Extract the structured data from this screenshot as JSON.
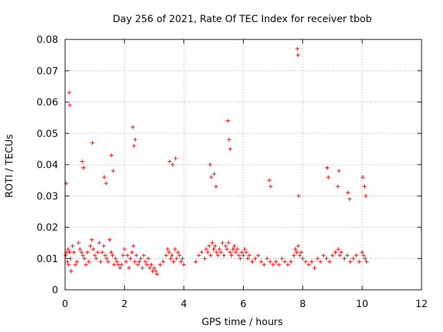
{
  "chart_data": {
    "type": "scatter",
    "title": "Day 256 of 2021, Rate Of TEC Index for receiver tbob",
    "xlabel": "GPS time / hours",
    "ylabel": "ROTI / TECUs",
    "xlim": [
      0,
      12
    ],
    "ylim": [
      0,
      0.08
    ],
    "xticks": [
      0,
      2,
      4,
      6,
      8,
      10,
      12
    ],
    "xtick_labels": [
      "0",
      "2",
      "4",
      "6",
      "8",
      "10",
      "12"
    ],
    "yticks": [
      0,
      0.01,
      0.02,
      0.03,
      0.04,
      0.05,
      0.06,
      0.07,
      0.08
    ],
    "ytick_labels": [
      "0",
      "0.01",
      "0.02",
      "0.03",
      "0.04",
      "0.05",
      "0.06",
      "0.07",
      "0.08"
    ],
    "grid": true,
    "marker": "+",
    "color": "#ff0000",
    "series": [
      {
        "name": "ROTI",
        "x": [
          0.02,
          0.05,
          0.08,
          0.1,
          0.12,
          0.15,
          0.18,
          0.2,
          0.25,
          0.3,
          0.35,
          0.4,
          0.45,
          0.5,
          0.55,
          0.6,
          0.65,
          0.7,
          0.75,
          0.8,
          0.85,
          0.9,
          0.95,
          1.0,
          1.05,
          1.1,
          1.15,
          1.2,
          1.25,
          1.3,
          1.35,
          1.4,
          1.45,
          1.5,
          1.55,
          1.6,
          1.65,
          1.7,
          1.75,
          1.8,
          1.85,
          1.9,
          1.95,
          2.0,
          2.05,
          2.1,
          2.15,
          2.2,
          2.25,
          2.3,
          2.35,
          2.4,
          2.45,
          2.5,
          2.55,
          2.6,
          2.65,
          2.7,
          2.75,
          2.8,
          2.85,
          2.9,
          2.95,
          3.0,
          3.05,
          3.1,
          3.2,
          3.3,
          3.4,
          3.45,
          3.5,
          3.55,
          3.6,
          3.65,
          3.7,
          3.75,
          3.8,
          3.85,
          3.9,
          3.95,
          4.0,
          4.4,
          4.5,
          4.6,
          4.7,
          4.75,
          4.8,
          4.85,
          4.9,
          4.95,
          5.0,
          5.05,
          5.1,
          5.15,
          5.2,
          5.25,
          5.3,
          5.35,
          5.4,
          5.45,
          5.5,
          5.55,
          5.6,
          5.65,
          5.7,
          5.75,
          5.8,
          5.85,
          5.9,
          5.95,
          6.0,
          6.05,
          6.1,
          6.15,
          6.2,
          6.3,
          6.4,
          6.5,
          6.6,
          6.7,
          6.8,
          6.9,
          7.0,
          7.1,
          7.2,
          7.3,
          7.4,
          7.5,
          7.6,
          7.7,
          7.75,
          7.8,
          7.85,
          7.9,
          7.95,
          8.0,
          8.1,
          8.2,
          8.3,
          8.4,
          8.5,
          8.6,
          8.7,
          8.8,
          8.9,
          9.0,
          9.1,
          9.2,
          9.25,
          9.3,
          9.4,
          9.5,
          9.6,
          9.7,
          9.8,
          9.9,
          10.0,
          10.05,
          10.1,
          10.15,
          0.04,
          0.14,
          0.16,
          0.58,
          0.62,
          0.92,
          1.32,
          1.38,
          1.56,
          1.62,
          2.28,
          2.32,
          2.36,
          3.52,
          3.62,
          3.72,
          4.88,
          4.92,
          5.48,
          5.52,
          5.56,
          5.02,
          5.08,
          6.88,
          6.92,
          7.82,
          7.84,
          7.86,
          8.82,
          8.86,
          9.18,
          9.22,
          9.52,
          9.58,
          10.02,
          10.08,
          10.12
        ],
        "y": [
          0.011,
          0.012,
          0.009,
          0.013,
          0.008,
          0.012,
          0.01,
          0.006,
          0.014,
          0.012,
          0.008,
          0.009,
          0.015,
          0.013,
          0.012,
          0.011,
          0.01,
          0.008,
          0.012,
          0.009,
          0.014,
          0.016,
          0.013,
          0.011,
          0.01,
          0.012,
          0.015,
          0.009,
          0.012,
          0.014,
          0.011,
          0.01,
          0.009,
          0.016,
          0.012,
          0.011,
          0.008,
          0.01,
          0.009,
          0.008,
          0.007,
          0.008,
          0.011,
          0.013,
          0.009,
          0.011,
          0.007,
          0.01,
          0.012,
          0.014,
          0.009,
          0.011,
          0.008,
          0.009,
          0.01,
          0.007,
          0.011,
          0.009,
          0.008,
          0.01,
          0.007,
          0.008,
          0.006,
          0.007,
          0.006,
          0.005,
          0.008,
          0.009,
          0.011,
          0.013,
          0.012,
          0.01,
          0.011,
          0.009,
          0.013,
          0.01,
          0.012,
          0.011,
          0.009,
          0.01,
          0.008,
          0.009,
          0.011,
          0.012,
          0.01,
          0.013,
          0.012,
          0.014,
          0.011,
          0.015,
          0.013,
          0.014,
          0.012,
          0.011,
          0.013,
          0.012,
          0.015,
          0.011,
          0.014,
          0.013,
          0.015,
          0.012,
          0.011,
          0.013,
          0.014,
          0.012,
          0.013,
          0.011,
          0.01,
          0.012,
          0.011,
          0.013,
          0.012,
          0.01,
          0.011,
          0.009,
          0.01,
          0.011,
          0.009,
          0.008,
          0.01,
          0.009,
          0.008,
          0.009,
          0.008,
          0.01,
          0.009,
          0.008,
          0.009,
          0.011,
          0.013,
          0.012,
          0.014,
          0.011,
          0.012,
          0.01,
          0.009,
          0.008,
          0.009,
          0.007,
          0.01,
          0.009,
          0.011,
          0.01,
          0.009,
          0.011,
          0.012,
          0.013,
          0.011,
          0.012,
          0.01,
          0.011,
          0.009,
          0.01,
          0.011,
          0.009,
          0.012,
          0.011,
          0.01,
          0.009,
          0.034,
          0.063,
          0.059,
          0.041,
          0.039,
          0.047,
          0.036,
          0.034,
          0.043,
          0.038,
          0.052,
          0.046,
          0.048,
          0.041,
          0.04,
          0.042,
          0.04,
          0.036,
          0.054,
          0.048,
          0.045,
          0.037,
          0.033,
          0.035,
          0.033,
          0.077,
          0.075,
          0.03,
          0.039,
          0.036,
          0.033,
          0.038,
          0.031,
          0.029,
          0.036,
          0.033,
          0.03
        ]
      }
    ]
  }
}
